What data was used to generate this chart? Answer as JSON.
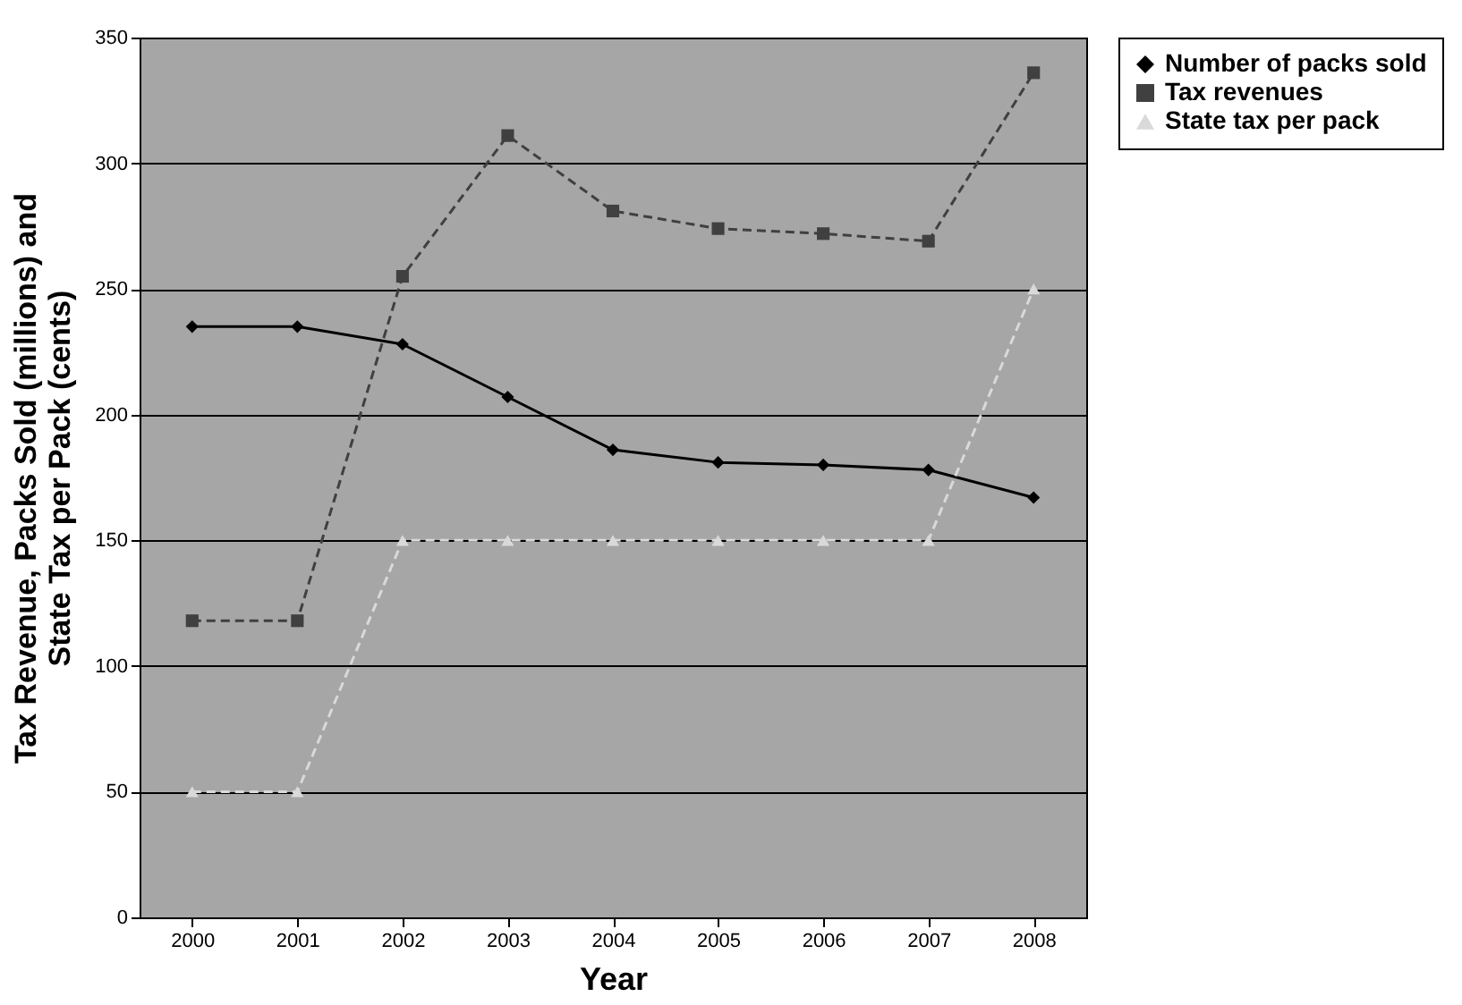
{
  "chart_data": {
    "type": "line",
    "xlabel": "Year",
    "ylabel": "Tax Revenue, Packs Sold (millions) and\nState Tax per Pack (cents)",
    "categories": [
      "2000",
      "2001",
      "2002",
      "2003",
      "2004",
      "2005",
      "2006",
      "2007",
      "2008"
    ],
    "series": [
      {
        "name": "Number of packs sold",
        "color": "#000000",
        "marker": "diamond",
        "line_style": "solid",
        "values": [
          235,
          235,
          228,
          207,
          186,
          181,
          180,
          178,
          167
        ]
      },
      {
        "name": "Tax revenues",
        "color": "#404040",
        "marker": "square",
        "line_style": "dashed",
        "values": [
          118,
          118,
          255,
          311,
          281,
          274,
          272,
          269,
          336
        ]
      },
      {
        "name": "State tax per pack",
        "color": "#d9d9d9",
        "marker": "triangle",
        "line_style": "dashed",
        "values": [
          50,
          50,
          150,
          150,
          150,
          150,
          150,
          150,
          250
        ]
      }
    ],
    "ylim": [
      0,
      350
    ],
    "yticks": [
      0,
      50,
      100,
      150,
      200,
      250,
      300,
      350
    ],
    "grid": "y",
    "legend": "right"
  }
}
